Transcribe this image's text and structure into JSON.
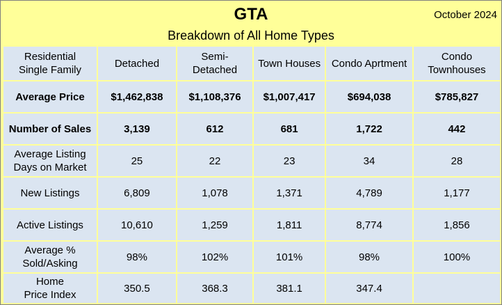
{
  "title": "GTA",
  "date": "October 2024",
  "subtitle": "Breakdown of All Home Types",
  "columns": [
    "Residential Single Family",
    "Detached",
    "Semi-Detached",
    "Town Houses",
    "Condo Aprtment",
    "Condo Townhouses"
  ],
  "rows": [
    {
      "label": "Average Price",
      "bold": true,
      "values": [
        "$1,462,838",
        "$1,108,376",
        "$1,007,417",
        "$694,038",
        "$785,827"
      ]
    },
    {
      "label": "Number of Sales",
      "bold": true,
      "values": [
        "3,139",
        "612",
        "681",
        "1,722",
        "442"
      ]
    },
    {
      "label": "Average Listing Days on Market",
      "bold": false,
      "values": [
        "25",
        "22",
        "23",
        "34",
        "28"
      ]
    },
    {
      "label": "New Listings",
      "bold": false,
      "values": [
        "6,809",
        "1,078",
        "1,371",
        "4,789",
        "1,177"
      ]
    },
    {
      "label": "Active Listings",
      "bold": false,
      "values": [
        "10,610",
        "1,259",
        "1,811",
        "8,774",
        "1,856"
      ]
    },
    {
      "label": "Average % Sold/Asking",
      "bold": false,
      "values": [
        "98%",
        "102%",
        "101%",
        "98%",
        "100%"
      ]
    },
    {
      "label": "Home Price Index",
      "bold": false,
      "values": [
        "350.5",
        "368.3",
        "381.1",
        "347.4",
        ""
      ]
    }
  ]
}
